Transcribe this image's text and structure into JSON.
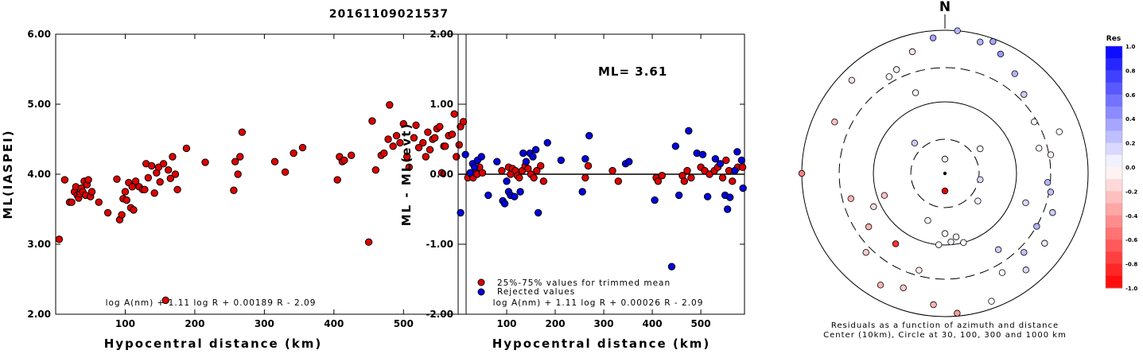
{
  "title": "20161109021537",
  "chart_data": [
    {
      "type": "scatter",
      "xlabel": "Hypocentral distance (km)",
      "ylabel": "ML(IASPEI)",
      "xlim": [
        0,
        590
      ],
      "ylim": [
        2.0,
        6.0
      ],
      "xticks": [
        "100",
        "200",
        "300",
        "400",
        "500"
      ],
      "yticks": [
        "2.00",
        "3.00",
        "4.00",
        "5.00",
        "6.00"
      ],
      "grid": false,
      "formula": "log A(nm) + 1.11 log R + 0.00189 R - 2.09",
      "marker_color": "#dd0000",
      "points": [
        [
          5,
          3.07
        ],
        [
          13,
          3.92
        ],
        [
          20,
          3.6
        ],
        [
          23,
          3.6
        ],
        [
          27,
          3.75
        ],
        [
          29,
          3.82
        ],
        [
          31,
          3.7
        ],
        [
          33,
          3.66
        ],
        [
          35,
          3.72
        ],
        [
          37,
          3.8
        ],
        [
          39,
          3.75
        ],
        [
          41,
          3.9
        ],
        [
          43,
          3.7
        ],
        [
          45,
          3.85
        ],
        [
          47,
          3.92
        ],
        [
          50,
          3.68
        ],
        [
          52,
          3.75
        ],
        [
          62,
          3.6
        ],
        [
          75,
          3.45
        ],
        [
          88,
          3.93
        ],
        [
          92,
          3.35
        ],
        [
          95,
          3.42
        ],
        [
          97,
          3.65
        ],
        [
          100,
          3.75
        ],
        [
          102,
          3.63
        ],
        [
          105,
          3.88
        ],
        [
          108,
          3.52
        ],
        [
          110,
          3.82
        ],
        [
          112,
          3.49
        ],
        [
          115,
          3.9
        ],
        [
          120,
          3.82
        ],
        [
          125,
          3.78
        ],
        [
          128,
          3.78
        ],
        [
          130,
          4.15
        ],
        [
          133,
          3.95
        ],
        [
          138,
          4.12
        ],
        [
          142,
          3.73
        ],
        [
          145,
          4.02
        ],
        [
          148,
          4.1
        ],
        [
          150,
          3.89
        ],
        [
          155,
          4.15
        ],
        [
          158,
          2.2
        ],
        [
          162,
          4.06
        ],
        [
          165,
          3.94
        ],
        [
          168,
          4.25
        ],
        [
          172,
          4.0
        ],
        [
          175,
          3.78
        ],
        [
          188,
          4.37
        ],
        [
          215,
          4.17
        ],
        [
          256,
          3.77
        ],
        [
          258,
          4.18
        ],
        [
          262,
          4.0
        ],
        [
          265,
          4.25
        ],
        [
          268,
          4.6
        ],
        [
          315,
          4.18
        ],
        [
          330,
          4.03
        ],
        [
          342,
          4.3
        ],
        [
          355,
          4.38
        ],
        [
          405,
          3.92
        ],
        [
          408,
          4.25
        ],
        [
          412,
          4.18
        ],
        [
          415,
          4.2
        ],
        [
          425,
          4.27
        ],
        [
          450,
          3.03
        ],
        [
          455,
          4.76
        ],
        [
          460,
          4.06
        ],
        [
          468,
          4.27
        ],
        [
          472,
          4.3
        ],
        [
          478,
          4.5
        ],
        [
          480,
          4.99
        ],
        [
          485,
          4.4
        ],
        [
          490,
          4.55
        ],
        [
          495,
          4.45
        ],
        [
          500,
          4.72
        ],
        [
          505,
          4.25
        ],
        [
          508,
          4.1
        ],
        [
          515,
          4.52
        ],
        [
          518,
          4.7
        ],
        [
          522,
          4.38
        ],
        [
          528,
          4.45
        ],
        [
          532,
          4.25
        ],
        [
          535,
          4.6
        ],
        [
          538,
          4.35
        ],
        [
          542,
          4.5
        ],
        [
          545,
          4.52
        ],
        [
          548,
          4.65
        ],
        [
          552,
          4.68
        ],
        [
          555,
          4.02
        ],
        [
          558,
          4.4
        ],
        [
          560,
          4.4
        ],
        [
          565,
          4.55
        ],
        [
          570,
          4.57
        ],
        [
          573,
          4.86
        ],
        [
          576,
          4.25
        ],
        [
          580,
          4.42
        ],
        [
          582,
          4.68
        ],
        [
          586,
          4.75
        ]
      ]
    },
    {
      "type": "scatter",
      "xlabel": "Hypocentral distance (km)",
      "ylabel": "ML - ML(evt)",
      "xlim": [
        0,
        590
      ],
      "ylim": [
        -2.0,
        2.0
      ],
      "xticks": [
        "100",
        "200",
        "300",
        "400",
        "500"
      ],
      "yticks": [
        "-2.00",
        "-1.00",
        "0.00",
        "1.00",
        "2.00"
      ],
      "grid": false,
      "reference_line": 0,
      "annotation": "ML= 3.61",
      "formula": "log A(nm) + 1.11 log R + 0.00026 R - 2.09",
      "series": [
        {
          "name": "25%-75% values for trimmed mean",
          "color": "#dd0000",
          "points": [
            [
              20,
              -0.05
            ],
            [
              27,
              0.0
            ],
            [
              31,
              -0.05
            ],
            [
              35,
              0.05
            ],
            [
              39,
              0.0
            ],
            [
              44,
              0.1
            ],
            [
              50,
              0.02
            ],
            [
              90,
              0.05
            ],
            [
              104,
              0.1
            ],
            [
              108,
              0.0
            ],
            [
              112,
              0.08
            ],
            [
              118,
              0.05
            ],
            [
              122,
              -0.02
            ],
            [
              126,
              -0.05
            ],
            [
              132,
              0.05
            ],
            [
              138,
              0.12
            ],
            [
              144,
              0.08
            ],
            [
              150,
              0.0
            ],
            [
              156,
              -0.05
            ],
            [
              162,
              0.05
            ],
            [
              170,
              0.12
            ],
            [
              176,
              -0.1
            ],
            [
              262,
              -0.05
            ],
            [
              268,
              0.12
            ],
            [
              318,
              0.05
            ],
            [
              330,
              -0.1
            ],
            [
              408,
              -0.05
            ],
            [
              412,
              -0.1
            ],
            [
              420,
              -0.02
            ],
            [
              462,
              -0.02
            ],
            [
              466,
              -0.1
            ],
            [
              472,
              0.05
            ],
            [
              480,
              -0.05
            ],
            [
              500,
              0.1
            ],
            [
              508,
              0.05
            ],
            [
              518,
              0.0
            ],
            [
              528,
              0.05
            ],
            [
              535,
              0.1
            ],
            [
              545,
              -0.05
            ],
            [
              552,
              0.2
            ],
            [
              558,
              0.05
            ],
            [
              565,
              -0.1
            ],
            [
              570,
              0.05
            ],
            [
              576,
              0.1
            ],
            [
              586,
              0.1
            ]
          ]
        },
        {
          "name": "Rejected values",
          "color": "#0000dd",
          "points": [
            [
              5,
              -0.55
            ],
            [
              15,
              0.28
            ],
            [
              25,
              0.02
            ],
            [
              30,
              0.15
            ],
            [
              34,
              0.1
            ],
            [
              40,
              0.2
            ],
            [
              48,
              0.25
            ],
            [
              62,
              -0.3
            ],
            [
              80,
              0.18
            ],
            [
              92,
              -0.38
            ],
            [
              96,
              -0.42
            ],
            [
              100,
              -0.1
            ],
            [
              104,
              -0.25
            ],
            [
              108,
              -0.3
            ],
            [
              116,
              -0.32
            ],
            [
              128,
              -0.25
            ],
            [
              134,
              0.3
            ],
            [
              140,
              0.18
            ],
            [
              148,
              0.3
            ],
            [
              154,
              0.25
            ],
            [
              160,
              0.35
            ],
            [
              165,
              -0.55
            ],
            [
              184,
              0.45
            ],
            [
              212,
              0.2
            ],
            [
              256,
              -0.25
            ],
            [
              262,
              0.22
            ],
            [
              270,
              0.55
            ],
            [
              345,
              0.15
            ],
            [
              352,
              0.18
            ],
            [
              405,
              -0.37
            ],
            [
              440,
              -1.32
            ],
            [
              448,
              0.4
            ],
            [
              455,
              -0.3
            ],
            [
              475,
              0.62
            ],
            [
              492,
              0.3
            ],
            [
              504,
              0.28
            ],
            [
              514,
              -0.32
            ],
            [
              530,
              0.22
            ],
            [
              540,
              0.15
            ],
            [
              550,
              -0.3
            ],
            [
              555,
              -0.5
            ],
            [
              560,
              -0.33
            ],
            [
              570,
              0.05
            ],
            [
              575,
              0.32
            ],
            [
              584,
              0.2
            ],
            [
              587,
              -0.2
            ]
          ]
        }
      ]
    },
    {
      "type": "scatter",
      "subtype": "polar-residual-map",
      "north_label": "N",
      "caption_line1": "Residuals as a function of azimuth and distance",
      "caption_line2": "Center (10km), Circle at 30, 100, 300 and 1000 km",
      "rings_km": [
        30,
        100,
        300,
        1000
      ],
      "colorbar": {
        "label": "Res",
        "min": -1.0,
        "max": 1.0,
        "ticks": [
          "1.0",
          "0.8",
          "0.6",
          "0.4",
          "0.2",
          "0.0",
          "-0.2",
          "-0.4",
          "-0.6",
          "-0.8",
          "-1.0"
        ],
        "positive_color": "#0000ff",
        "negative_color": "#ff0000"
      },
      "stations": [
        [
          0,
          0.1,
          -0.05
        ],
        [
          100,
          0.25,
          0.15
        ],
        [
          55,
          0.3,
          0.0
        ],
        [
          130,
          0.3,
          0.05
        ],
        [
          200,
          0.35,
          0.05
        ],
        [
          315,
          0.3,
          0.2
        ],
        [
          170,
          0.45,
          0.0
        ],
        [
          180,
          0.42,
          0.0
        ],
        [
          175,
          0.48,
          0.05
        ],
        [
          165,
          0.5,
          0.0
        ],
        [
          185,
          0.5,
          0.0
        ],
        [
          15,
          0.95,
          0.3
        ],
        [
          20,
          0.98,
          0.35
        ],
        [
          25,
          0.92,
          0.4
        ],
        [
          35,
          0.85,
          0.3
        ],
        [
          45,
          0.78,
          0.2
        ],
        [
          60,
          0.72,
          0.0
        ],
        [
          75,
          0.68,
          0.0
        ],
        [
          80,
          0.75,
          -0.05
        ],
        [
          95,
          0.72,
          0.3
        ],
        [
          100,
          0.75,
          0.25
        ],
        [
          110,
          0.8,
          0.2
        ],
        [
          120,
          0.74,
          0.3
        ],
        [
          125,
          0.85,
          0.1
        ],
        [
          135,
          0.78,
          0.25
        ],
        [
          140,
          0.88,
          0.15
        ],
        [
          150,
          0.8,
          0.0
        ],
        [
          160,
          0.95,
          0.0
        ],
        [
          175,
          0.98,
          -0.4
        ],
        [
          185,
          0.92,
          -0.3
        ],
        [
          200,
          0.85,
          -0.2
        ],
        [
          210,
          0.9,
          -0.3
        ],
        [
          225,
          0.78,
          -0.2
        ],
        [
          235,
          0.65,
          -0.3
        ],
        [
          245,
          0.55,
          -0.15
        ],
        [
          255,
          0.68,
          -0.3
        ],
        [
          270,
          1.0,
          -0.5
        ],
        [
          295,
          0.85,
          -0.25
        ],
        [
          315,
          0.92,
          -0.1
        ],
        [
          330,
          0.78,
          0.0
        ],
        [
          335,
          0.8,
          -0.05
        ],
        [
          345,
          0.88,
          -0.1
        ],
        [
          355,
          0.95,
          0.35
        ],
        [
          5,
          1.0,
          0.3
        ],
        [
          70,
          0.85,
          0.0
        ],
        [
          110,
          0.6,
          0.15
        ],
        [
          145,
          0.65,
          0.2
        ],
        [
          195,
          0.7,
          -0.1
        ],
        [
          215,
          0.6,
          -0.8
        ],
        [
          250,
          0.45,
          -0.25
        ],
        [
          340,
          0.6,
          0.0
        ]
      ]
    }
  ]
}
